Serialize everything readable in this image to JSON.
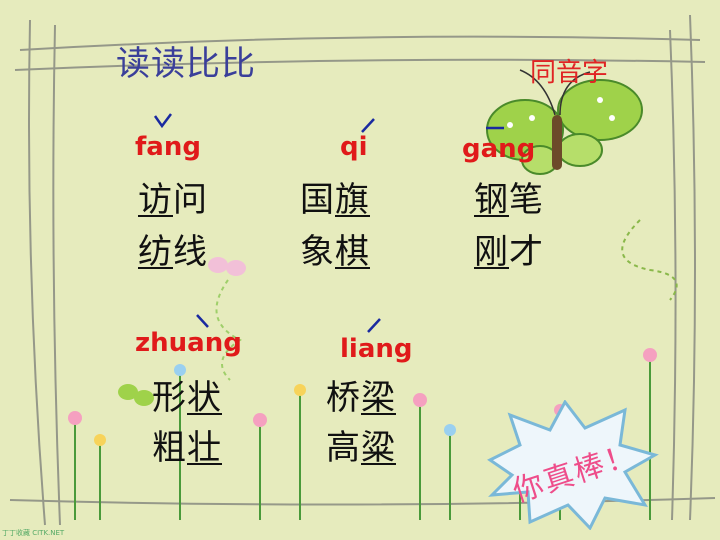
{
  "title": "读读比比",
  "subtitle": "同音字",
  "groups": [
    {
      "pinyin": "fang",
      "tone": "ˇ",
      "words": [
        {
          "hl": "访",
          "rest": "问"
        },
        {
          "hl": "纺",
          "rest": "线"
        }
      ]
    },
    {
      "pinyin": "qi",
      "tone": "ˊ",
      "words": [
        {
          "pre": "国",
          "hl": "旗"
        },
        {
          "pre": "象",
          "hl": "棋"
        }
      ]
    },
    {
      "pinyin": "gang",
      "tone": "ˉ",
      "words": [
        {
          "hl": "钢",
          "rest": "笔"
        },
        {
          "hl": "刚",
          "rest": "才"
        }
      ]
    },
    {
      "pinyin": "zhuang",
      "tone": "ˋ",
      "words": [
        {
          "pre": "形",
          "hl": "状"
        },
        {
          "pre": "粗",
          "hl": "壮"
        }
      ]
    },
    {
      "pinyin": "liang",
      "tone": "ˊ",
      "words": [
        {
          "pre": "桥",
          "hl": "梁"
        },
        {
          "pre": "高",
          "hl": "粱"
        }
      ]
    }
  ],
  "badge": "你真棒！",
  "watermark": "丁丁收藏 CITK.NET",
  "colors": {
    "title": "#3a3f9a",
    "pinyin": "#e01a1a",
    "badge_text": "#ee4d8a",
    "tone_mark": "#1a2aa0"
  }
}
